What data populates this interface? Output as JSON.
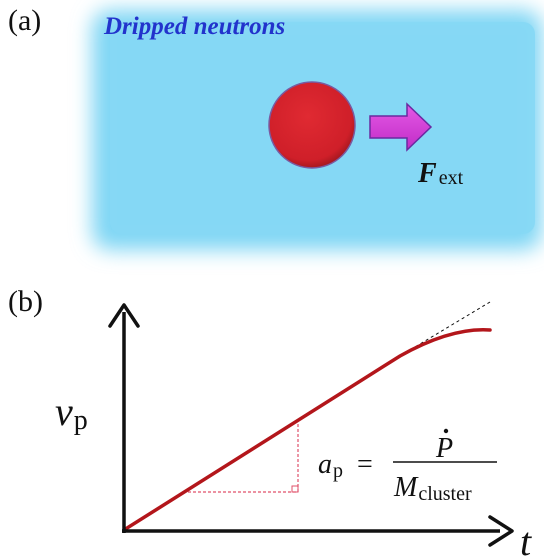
{
  "panel_a": {
    "label": "(a)",
    "fluid_label": "Dripped neutrons",
    "force_symbol": "F",
    "force_subscript": "ext",
    "colors": {
      "fluid": "#7fd6f4",
      "cluster": "#d4222c",
      "arrow": "#d437d6",
      "fluid_label": "#2233cc"
    }
  },
  "panel_b": {
    "label": "(b)",
    "y_axis_symbol": "v",
    "y_axis_subscript": "p",
    "x_axis_symbol": "t",
    "formula": {
      "lhs_symbol": "a",
      "lhs_subscript": "p",
      "equals": "=",
      "numerator": "P",
      "denominator_symbol": "M",
      "denominator_subscript": "cluster"
    },
    "colors": {
      "curve": "#b3161b",
      "guide": "#e0506a",
      "axis": "#111111"
    }
  }
}
